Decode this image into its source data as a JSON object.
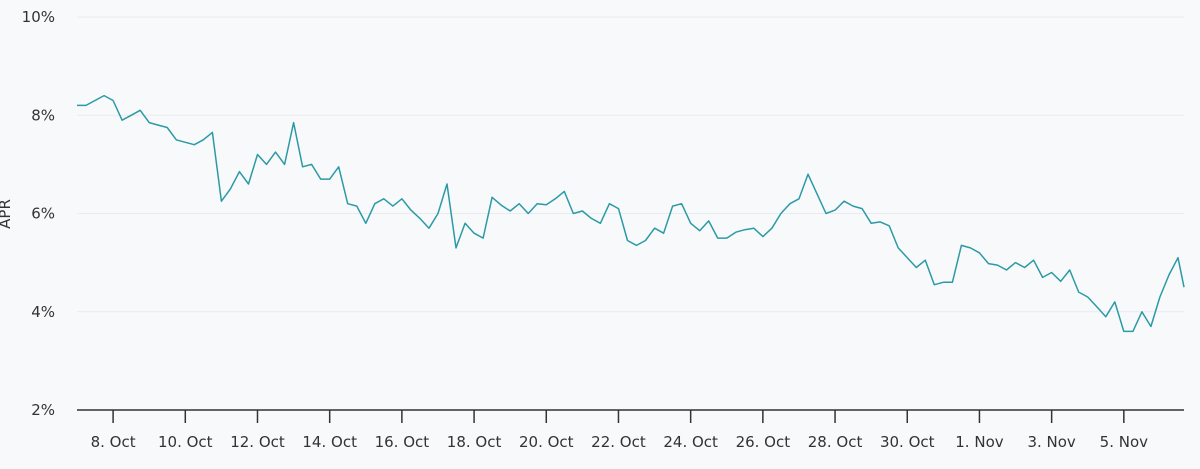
{
  "chart_data": {
    "type": "line",
    "title": "",
    "xlabel": "",
    "ylabel": "APR",
    "ylim": [
      2,
      10
    ],
    "xlim": [
      "Oct 7 00:00",
      "Nov 6 16:00"
    ],
    "grid": true,
    "legend": "none",
    "line_color": "#2b9aa6",
    "y_ticks": [
      {
        "value": 2,
        "label": "2%"
      },
      {
        "value": 4,
        "label": "4%"
      },
      {
        "value": 6,
        "label": "6%"
      },
      {
        "value": 8,
        "label": "8%"
      },
      {
        "value": 10,
        "label": "10%"
      }
    ],
    "x_ticks": [
      {
        "value": "Oct 8 00:00",
        "label": "8. Oct"
      },
      {
        "value": "Oct 10 00:00",
        "label": "10. Oct"
      },
      {
        "value": "Oct 12 00:00",
        "label": "12. Oct"
      },
      {
        "value": "Oct 14 00:00",
        "label": "14. Oct"
      },
      {
        "value": "Oct 16 00:00",
        "label": "16. Oct"
      },
      {
        "value": "Oct 18 00:00",
        "label": "18. Oct"
      },
      {
        "value": "Oct 20 00:00",
        "label": "20. Oct"
      },
      {
        "value": "Oct 22 00:00",
        "label": "22. Oct"
      },
      {
        "value": "Oct 24 00:00",
        "label": "24. Oct"
      },
      {
        "value": "Oct 26 00:00",
        "label": "26. Oct"
      },
      {
        "value": "Oct 28 00:00",
        "label": "28. Oct"
      },
      {
        "value": "Oct 30 00:00",
        "label": "30. Oct"
      },
      {
        "value": "Nov 1 00:00",
        "label": "1. Nov"
      },
      {
        "value": "Nov 3 00:00",
        "label": "3. Nov"
      },
      {
        "value": "Nov 5 00:00",
        "label": "5. Nov"
      }
    ],
    "series": [
      {
        "points": [
          [
            "Oct 7 00:00",
            8.2
          ],
          [
            "Oct 7 06:00",
            8.2
          ],
          [
            "Oct 7 12:00",
            8.3
          ],
          [
            "Oct 7 18:00",
            8.4
          ],
          [
            "Oct 8 00:00",
            8.3
          ],
          [
            "Oct 8 06:00",
            7.9
          ],
          [
            "Oct 8 12:00",
            8.0
          ],
          [
            "Oct 8 18:00",
            8.1
          ],
          [
            "Oct 9 00:00",
            7.85
          ],
          [
            "Oct 9 06:00",
            7.8
          ],
          [
            "Oct 9 12:00",
            7.75
          ],
          [
            "Oct 9 18:00",
            7.5
          ],
          [
            "Oct 10 00:00",
            7.45
          ],
          [
            "Oct 10 06:00",
            7.4
          ],
          [
            "Oct 10 12:00",
            7.5
          ],
          [
            "Oct 10 18:00",
            7.65
          ],
          [
            "Oct 11 00:00",
            6.25
          ],
          [
            "Oct 11 06:00",
            6.5
          ],
          [
            "Oct 11 12:00",
            6.85
          ],
          [
            "Oct 11 18:00",
            6.6
          ],
          [
            "Oct 12 00:00",
            7.2
          ],
          [
            "Oct 12 06:00",
            7.0
          ],
          [
            "Oct 12 12:00",
            7.25
          ],
          [
            "Oct 12 18:00",
            7.0
          ],
          [
            "Oct 13 00:00",
            7.85
          ],
          [
            "Oct 13 06:00",
            6.95
          ],
          [
            "Oct 13 12:00",
            7.0
          ],
          [
            "Oct 13 18:00",
            6.7
          ],
          [
            "Oct 14 00:00",
            6.7
          ],
          [
            "Oct 14 06:00",
            6.95
          ],
          [
            "Oct 14 12:00",
            6.2
          ],
          [
            "Oct 14 18:00",
            6.15
          ],
          [
            "Oct 15 00:00",
            5.8
          ],
          [
            "Oct 15 06:00",
            6.2
          ],
          [
            "Oct 15 12:00",
            6.3
          ],
          [
            "Oct 15 18:00",
            6.15
          ],
          [
            "Oct 16 00:00",
            6.3
          ],
          [
            "Oct 16 06:00",
            6.07
          ],
          [
            "Oct 16 12:00",
            5.9
          ],
          [
            "Oct 16 18:00",
            5.7
          ],
          [
            "Oct 17 00:00",
            6.0
          ],
          [
            "Oct 17 06:00",
            6.6
          ],
          [
            "Oct 17 12:00",
            5.3
          ],
          [
            "Oct 17 18:00",
            5.8
          ],
          [
            "Oct 18 00:00",
            5.6
          ],
          [
            "Oct 18 06:00",
            5.5
          ],
          [
            "Oct 18 12:00",
            6.33
          ],
          [
            "Oct 18 18:00",
            6.17
          ],
          [
            "Oct 19 00:00",
            6.05
          ],
          [
            "Oct 19 06:00",
            6.2
          ],
          [
            "Oct 19 12:00",
            6.0
          ],
          [
            "Oct 19 18:00",
            6.2
          ],
          [
            "Oct 20 00:00",
            6.18
          ],
          [
            "Oct 20 06:00",
            6.3
          ],
          [
            "Oct 20 12:00",
            6.45
          ],
          [
            "Oct 20 18:00",
            6.0
          ],
          [
            "Oct 21 00:00",
            6.05
          ],
          [
            "Oct 21 06:00",
            5.9
          ],
          [
            "Oct 21 12:00",
            5.8
          ],
          [
            "Oct 21 18:00",
            6.2
          ],
          [
            "Oct 22 00:00",
            6.1
          ],
          [
            "Oct 22 06:00",
            5.45
          ],
          [
            "Oct 22 12:00",
            5.35
          ],
          [
            "Oct 22 18:00",
            5.45
          ],
          [
            "Oct 23 00:00",
            5.7
          ],
          [
            "Oct 23 06:00",
            5.6
          ],
          [
            "Oct 23 12:00",
            6.15
          ],
          [
            "Oct 23 18:00",
            6.2
          ],
          [
            "Oct 24 00:00",
            5.8
          ],
          [
            "Oct 24 06:00",
            5.65
          ],
          [
            "Oct 24 12:00",
            5.85
          ],
          [
            "Oct 24 18:00",
            5.5
          ],
          [
            "Oct 25 00:00",
            5.5
          ],
          [
            "Oct 25 06:00",
            5.62
          ],
          [
            "Oct 25 12:00",
            5.67
          ],
          [
            "Oct 25 18:00",
            5.7
          ],
          [
            "Oct 26 00:00",
            5.53
          ],
          [
            "Oct 26 06:00",
            5.7
          ],
          [
            "Oct 26 12:00",
            6.0
          ],
          [
            "Oct 26 18:00",
            6.2
          ],
          [
            "Oct 27 00:00",
            6.3
          ],
          [
            "Oct 27 06:00",
            6.8
          ],
          [
            "Oct 27 12:00",
            6.4
          ],
          [
            "Oct 27 18:00",
            6.0
          ],
          [
            "Oct 28 00:00",
            6.07
          ],
          [
            "Oct 28 06:00",
            6.25
          ],
          [
            "Oct 28 12:00",
            6.15
          ],
          [
            "Oct 28 18:00",
            6.1
          ],
          [
            "Oct 29 00:00",
            5.8
          ],
          [
            "Oct 29 06:00",
            5.83
          ],
          [
            "Oct 29 12:00",
            5.75
          ],
          [
            "Oct 29 18:00",
            5.3
          ],
          [
            "Oct 30 00:00",
            5.1
          ],
          [
            "Oct 30 06:00",
            4.9
          ],
          [
            "Oct 30 12:00",
            5.05
          ],
          [
            "Oct 30 18:00",
            4.55
          ],
          [
            "Oct 31 00:00",
            4.6
          ],
          [
            "Oct 31 06:00",
            4.6
          ],
          [
            "Oct 31 12:00",
            5.35
          ],
          [
            "Oct 31 18:00",
            5.3
          ],
          [
            "Nov 1 00:00",
            5.2
          ],
          [
            "Nov 1 06:00",
            4.98
          ],
          [
            "Nov 1 12:00",
            4.95
          ],
          [
            "Nov 1 18:00",
            4.85
          ],
          [
            "Nov 2 00:00",
            5.0
          ],
          [
            "Nov 2 06:00",
            4.9
          ],
          [
            "Nov 2 12:00",
            5.05
          ],
          [
            "Nov 2 18:00",
            4.7
          ],
          [
            "Nov 3 00:00",
            4.8
          ],
          [
            "Nov 3 06:00",
            4.62
          ],
          [
            "Nov 3 12:00",
            4.85
          ],
          [
            "Nov 3 18:00",
            4.4
          ],
          [
            "Nov 4 00:00",
            4.3
          ],
          [
            "Nov 4 06:00",
            4.1
          ],
          [
            "Nov 4 12:00",
            3.9
          ],
          [
            "Nov 4 18:00",
            4.2
          ],
          [
            "Nov 5 00:00",
            3.6
          ],
          [
            "Nov 5 06:00",
            3.6
          ],
          [
            "Nov 5 12:00",
            4.0
          ],
          [
            "Nov 5 18:00",
            3.7
          ],
          [
            "Nov 6 00:00",
            4.3
          ],
          [
            "Nov 6 06:00",
            4.75
          ],
          [
            "Nov 6 12:00",
            5.1
          ],
          [
            "Nov 6 16:00",
            4.5
          ]
        ]
      }
    ]
  }
}
